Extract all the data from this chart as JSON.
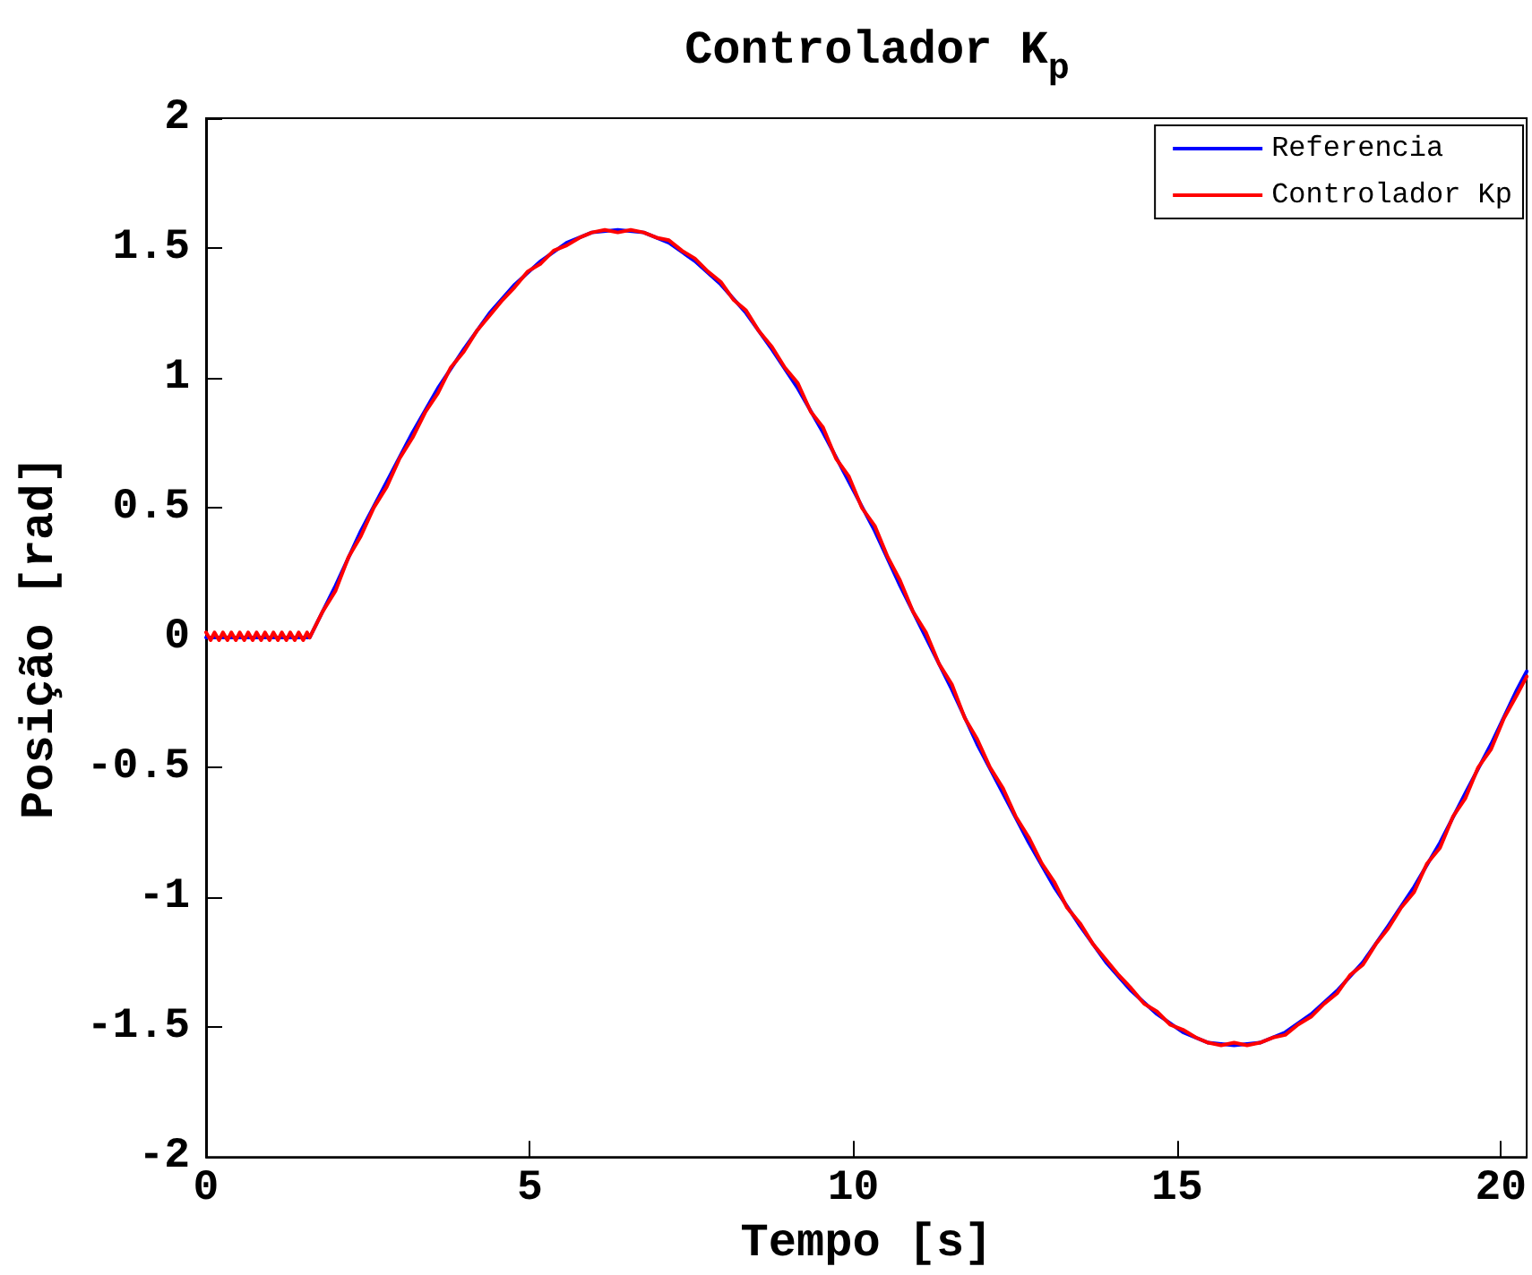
{
  "chart_data": {
    "type": "line",
    "title": "Controlador K$_{p}$",
    "xlabel": "Tempo [s]",
    "ylabel": "Posição [rad]",
    "xlim": [
      0,
      20.4
    ],
    "xticks": [
      0,
      5,
      10,
      15,
      20
    ],
    "ylim": [
      -2,
      2
    ],
    "yticks": [
      -2,
      -1.5,
      -1,
      -0.5,
      0,
      0.5,
      1,
      1.5,
      2
    ],
    "grid": false,
    "legend": "top right",
    "marker": "none",
    "line_style": "solid",
    "series": [
      {
        "name": "Referencia",
        "color": "#0000ff",
        "x": [
          0,
          1.6,
          2.0,
          2.39,
          2.79,
          3.19,
          3.58,
          3.98,
          4.38,
          4.77,
          5.17,
          5.57,
          5.96,
          6.36,
          6.76,
          7.15,
          7.55,
          7.95,
          8.34,
          8.74,
          9.14,
          9.53,
          9.93,
          10.33,
          10.72,
          11.12,
          11.52,
          11.91,
          12.31,
          12.71,
          13.1,
          13.5,
          13.9,
          14.29,
          14.69,
          15.09,
          15.48,
          15.88,
          16.28,
          16.67,
          17.07,
          17.47,
          17.87,
          18.26,
          18.66,
          19.06,
          19.45,
          19.85,
          20.25,
          20.4
        ],
        "values": [
          0,
          0,
          0.2,
          0.41,
          0.6,
          0.79,
          0.96,
          1.11,
          1.25,
          1.36,
          1.45,
          1.52,
          1.56,
          1.57,
          1.56,
          1.52,
          1.45,
          1.36,
          1.25,
          1.11,
          0.96,
          0.79,
          0.6,
          0.41,
          0.2,
          0,
          -0.2,
          -0.41,
          -0.6,
          -0.79,
          -0.96,
          -1.11,
          -1.25,
          -1.36,
          -1.45,
          -1.52,
          -1.56,
          -1.57,
          -1.56,
          -1.52,
          -1.45,
          -1.36,
          -1.25,
          -1.11,
          -0.96,
          -0.79,
          -0.6,
          -0.41,
          -0.2,
          -0.13
        ]
      },
      {
        "name": "Controlador Kp",
        "color": "#ff0000",
        "x": [
          0,
          0.07,
          0.13,
          0.2,
          0.26,
          0.33,
          0.39,
          0.46,
          0.52,
          0.59,
          0.65,
          0.72,
          0.78,
          0.85,
          0.91,
          0.98,
          1.04,
          1.11,
          1.17,
          1.24,
          1.3,
          1.37,
          1.43,
          1.5,
          1.56,
          1.6,
          1.8,
          2.0,
          2.2,
          2.39,
          2.59,
          2.79,
          2.99,
          3.19,
          3.39,
          3.58,
          3.78,
          3.98,
          4.18,
          4.38,
          4.58,
          4.77,
          4.97,
          5.17,
          5.37,
          5.57,
          5.77,
          5.96,
          6.16,
          6.36,
          6.56,
          6.76,
          6.96,
          7.15,
          7.35,
          7.55,
          7.75,
          7.95,
          8.15,
          8.34,
          8.54,
          8.74,
          8.94,
          9.14,
          9.34,
          9.53,
          9.73,
          9.93,
          10.13,
          10.33,
          10.53,
          10.72,
          10.92,
          11.12,
          11.32,
          11.52,
          11.72,
          11.91,
          12.11,
          12.31,
          12.51,
          12.71,
          12.91,
          13.1,
          13.3,
          13.5,
          13.7,
          13.9,
          14.1,
          14.29,
          14.49,
          14.69,
          14.89,
          15.09,
          15.29,
          15.48,
          15.68,
          15.88,
          16.08,
          16.28,
          16.48,
          16.67,
          16.87,
          17.07,
          17.27,
          17.47,
          17.67,
          17.87,
          18.07,
          18.26,
          18.46,
          18.66,
          18.86,
          19.06,
          19.26,
          19.45,
          19.65,
          19.85,
          20.05,
          20.25,
          20.4
        ],
        "values": [
          0.02,
          -0.01,
          0.02,
          -0.01,
          0.02,
          -0.01,
          0.02,
          -0.01,
          0.02,
          -0.01,
          0.02,
          -0.01,
          0.02,
          -0.01,
          0.02,
          -0.01,
          0.02,
          -0.01,
          0.02,
          -0.01,
          0.02,
          -0.01,
          0.02,
          -0.01,
          0.02,
          0,
          0.1,
          0.18,
          0.31,
          0.39,
          0.5,
          0.58,
          0.69,
          0.77,
          0.87,
          0.94,
          1.04,
          1.1,
          1.18,
          1.24,
          1.3,
          1.35,
          1.41,
          1.44,
          1.49,
          1.51,
          1.54,
          1.56,
          1.57,
          1.56,
          1.57,
          1.56,
          1.54,
          1.53,
          1.49,
          1.46,
          1.41,
          1.37,
          1.3,
          1.26,
          1.18,
          1.12,
          1.04,
          0.98,
          0.87,
          0.81,
          0.69,
          0.62,
          0.5,
          0.43,
          0.31,
          0.22,
          0.1,
          0.02,
          -0.1,
          -0.18,
          -0.31,
          -0.39,
          -0.5,
          -0.58,
          -0.69,
          -0.77,
          -0.87,
          -0.94,
          -1.04,
          -1.1,
          -1.18,
          -1.24,
          -1.3,
          -1.35,
          -1.41,
          -1.44,
          -1.49,
          -1.51,
          -1.54,
          -1.56,
          -1.57,
          -1.56,
          -1.57,
          -1.56,
          -1.54,
          -1.53,
          -1.49,
          -1.46,
          -1.41,
          -1.37,
          -1.3,
          -1.26,
          -1.18,
          -1.12,
          -1.04,
          -0.98,
          -0.87,
          -0.81,
          -0.69,
          -0.62,
          -0.5,
          -0.43,
          -0.31,
          -0.22,
          -0.15
        ]
      }
    ]
  }
}
